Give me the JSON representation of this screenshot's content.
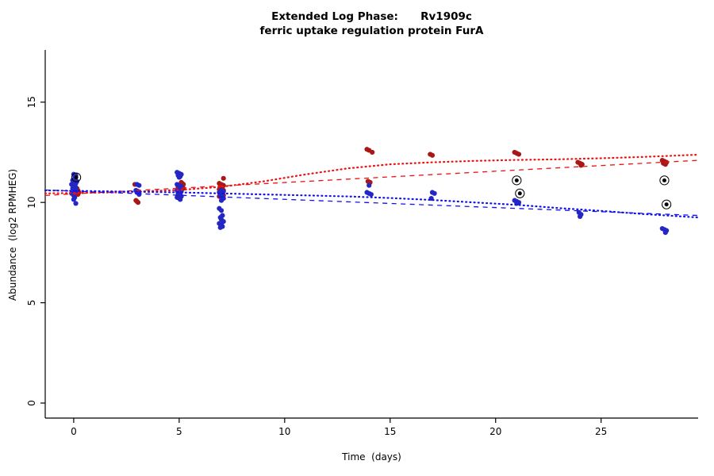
{
  "chart_data": {
    "type": "scatter",
    "title_line1": "Extended Log Phase:      Rv1909c",
    "title_line2": "ferric uptake regulation protein FurA",
    "xlabel": "Time  (days)",
    "ylabel": "Abundance  (log2 RPMHEG)",
    "xlim": [
      -1.35,
      29.6
    ],
    "ylim": [
      -0.75,
      17.6
    ],
    "xticks": [
      0,
      5,
      10,
      15,
      20,
      25
    ],
    "yticks": [
      0,
      5,
      10,
      15
    ],
    "grid": false,
    "legend": "none",
    "point_radius": 3.1,
    "colors": {
      "red_points": "#a81817",
      "blue_points": "#2427c4",
      "red_line": "#ee1111",
      "blue_line": "#1111ee",
      "flagged": "#000000",
      "axis": "#000000"
    },
    "series": [
      {
        "name": "red-points",
        "kind": "points",
        "color": "#a81817",
        "points": [
          [
            0.15,
            10.7
          ],
          [
            0.2,
            10.6
          ],
          [
            0.1,
            10.55
          ],
          [
            0.25,
            10.5
          ],
          [
            0.15,
            10.45
          ],
          [
            0.2,
            10.4
          ],
          [
            2.9,
            10.9
          ],
          [
            3.0,
            10.5
          ],
          [
            3.1,
            10.45
          ],
          [
            2.95,
            10.1
          ],
          [
            3.05,
            10.0
          ],
          [
            3.0,
            10.05
          ],
          [
            5.1,
            11.0
          ],
          [
            5.15,
            10.95
          ],
          [
            5.2,
            10.9
          ],
          [
            5.1,
            10.85
          ],
          [
            5.15,
            10.8
          ],
          [
            5.05,
            10.75
          ],
          [
            5.2,
            10.7
          ],
          [
            7.1,
            11.2
          ],
          [
            6.9,
            10.95
          ],
          [
            7.0,
            10.9
          ],
          [
            7.1,
            10.85
          ],
          [
            6.95,
            10.8
          ],
          [
            7.05,
            10.75
          ],
          [
            7.0,
            10.7
          ],
          [
            6.9,
            10.65
          ],
          [
            7.1,
            10.6
          ],
          [
            7.0,
            10.55
          ],
          [
            6.95,
            10.5
          ],
          [
            7.05,
            10.45
          ],
          [
            7.0,
            10.4
          ],
          [
            7.1,
            10.35
          ],
          [
            6.9,
            10.3
          ],
          [
            7.0,
            10.25
          ],
          [
            13.9,
            12.65
          ],
          [
            14.0,
            12.6
          ],
          [
            14.15,
            12.5
          ],
          [
            13.95,
            11.05
          ],
          [
            14.05,
            11.0
          ],
          [
            16.9,
            12.4
          ],
          [
            17.0,
            12.35
          ],
          [
            20.9,
            12.5
          ],
          [
            21.0,
            12.45
          ],
          [
            21.1,
            12.4
          ],
          [
            23.9,
            12.0
          ],
          [
            24.0,
            11.95
          ],
          [
            24.1,
            11.9
          ],
          [
            24.05,
            11.85
          ],
          [
            27.9,
            12.1
          ],
          [
            28.0,
            12.05
          ],
          [
            28.1,
            12.0
          ],
          [
            27.95,
            11.95
          ],
          [
            28.05,
            11.9
          ]
        ]
      },
      {
        "name": "blue-points",
        "kind": "points",
        "color": "#2427c4",
        "points": [
          [
            0.0,
            11.4
          ],
          [
            0.1,
            11.35
          ],
          [
            0.05,
            11.2
          ],
          [
            -0.05,
            11.1
          ],
          [
            0.15,
            11.05
          ],
          [
            0.0,
            11.0
          ],
          [
            0.1,
            10.95
          ],
          [
            -0.1,
            10.9
          ],
          [
            0.05,
            10.85
          ],
          [
            0.0,
            10.8
          ],
          [
            0.1,
            10.75
          ],
          [
            -0.05,
            10.7
          ],
          [
            0.0,
            10.65
          ],
          [
            0.1,
            10.6
          ],
          [
            0.05,
            10.5
          ],
          [
            -0.1,
            10.45
          ],
          [
            0.0,
            10.35
          ],
          [
            0.05,
            10.25
          ],
          [
            0.0,
            10.15
          ],
          [
            0.1,
            9.95
          ],
          [
            3.0,
            10.9
          ],
          [
            3.1,
            10.85
          ],
          [
            2.95,
            10.6
          ],
          [
            3.05,
            10.55
          ],
          [
            3.0,
            10.5
          ],
          [
            3.1,
            10.4
          ],
          [
            4.9,
            11.5
          ],
          [
            5.0,
            11.45
          ],
          [
            5.1,
            11.4
          ],
          [
            4.95,
            11.35
          ],
          [
            5.05,
            11.3
          ],
          [
            5.0,
            11.25
          ],
          [
            4.9,
            10.9
          ],
          [
            5.0,
            10.85
          ],
          [
            5.1,
            10.8
          ],
          [
            4.95,
            10.75
          ],
          [
            5.05,
            10.7
          ],
          [
            5.0,
            10.65
          ],
          [
            4.9,
            10.6
          ],
          [
            5.1,
            10.55
          ],
          [
            5.0,
            10.5
          ],
          [
            4.95,
            10.45
          ],
          [
            5.05,
            10.4
          ],
          [
            5.0,
            10.35
          ],
          [
            5.1,
            10.3
          ],
          [
            4.9,
            10.25
          ],
          [
            5.0,
            10.2
          ],
          [
            5.05,
            10.15
          ],
          [
            7.0,
            10.6
          ],
          [
            7.1,
            10.55
          ],
          [
            6.9,
            10.5
          ],
          [
            7.0,
            10.45
          ],
          [
            7.05,
            10.4
          ],
          [
            6.95,
            10.35
          ],
          [
            7.0,
            10.3
          ],
          [
            7.1,
            10.2
          ],
          [
            7.0,
            10.1
          ],
          [
            6.9,
            9.7
          ],
          [
            7.0,
            9.6
          ],
          [
            7.05,
            9.35
          ],
          [
            6.95,
            9.25
          ],
          [
            7.0,
            9.15
          ],
          [
            7.1,
            9.05
          ],
          [
            6.9,
            8.95
          ],
          [
            7.0,
            8.9
          ],
          [
            7.05,
            8.8
          ],
          [
            6.95,
            8.75
          ],
          [
            14.0,
            10.85
          ],
          [
            13.9,
            10.5
          ],
          [
            14.0,
            10.45
          ],
          [
            14.1,
            10.4
          ],
          [
            17.0,
            10.5
          ],
          [
            17.1,
            10.45
          ],
          [
            16.95,
            10.2
          ],
          [
            20.9,
            10.1
          ],
          [
            21.0,
            10.05
          ],
          [
            21.1,
            10.0
          ],
          [
            21.0,
            9.95
          ],
          [
            23.95,
            9.5
          ],
          [
            24.05,
            9.4
          ],
          [
            24.0,
            9.3
          ],
          [
            27.9,
            8.7
          ],
          [
            28.0,
            8.65
          ],
          [
            28.1,
            8.6
          ],
          [
            28.05,
            8.5
          ]
        ]
      },
      {
        "name": "flagged-points",
        "kind": "flagged",
        "color": "#000000",
        "points": [
          [
            0.12,
            11.25
          ],
          [
            21.0,
            11.1
          ],
          [
            21.15,
            10.45
          ],
          [
            28.0,
            11.1
          ],
          [
            28.1,
            9.9
          ]
        ]
      },
      {
        "name": "red-trend-dotted",
        "kind": "line",
        "color": "#ee1111",
        "dash": "1 4.2",
        "width": 2.2,
        "linecap": "round",
        "points": [
          [
            -1.35,
            10.45
          ],
          [
            2,
            10.5
          ],
          [
            5,
            10.62
          ],
          [
            7,
            10.78
          ],
          [
            9,
            11.05
          ],
          [
            11,
            11.4
          ],
          [
            13,
            11.7
          ],
          [
            15,
            11.9
          ],
          [
            17,
            12.0
          ],
          [
            19,
            12.07
          ],
          [
            21,
            12.12
          ],
          [
            23,
            12.15
          ],
          [
            25,
            12.2
          ],
          [
            27,
            12.27
          ],
          [
            29.6,
            12.38
          ]
        ]
      },
      {
        "name": "red-trend-dashed",
        "kind": "line",
        "color": "#ee1111",
        "dash": "6 5.5",
        "width": 1.3,
        "linecap": "butt",
        "points": [
          [
            -1.35,
            10.35
          ],
          [
            29.6,
            12.1
          ]
        ]
      },
      {
        "name": "blue-trend-dotted",
        "kind": "line",
        "color": "#1111ee",
        "dash": "1 4.2",
        "width": 2.2,
        "linecap": "round",
        "points": [
          [
            -1.35,
            10.6
          ],
          [
            2,
            10.55
          ],
          [
            5,
            10.5
          ],
          [
            7,
            10.45
          ],
          [
            9,
            10.4
          ],
          [
            11,
            10.35
          ],
          [
            13,
            10.3
          ],
          [
            15,
            10.22
          ],
          [
            17,
            10.12
          ],
          [
            19,
            10.0
          ],
          [
            21,
            9.88
          ],
          [
            23,
            9.72
          ],
          [
            25,
            9.58
          ],
          [
            27,
            9.42
          ],
          [
            29.6,
            9.25
          ]
        ]
      },
      {
        "name": "blue-trend-dashed",
        "kind": "line",
        "color": "#1111ee",
        "dash": "6 5.5",
        "width": 1.3,
        "linecap": "butt",
        "points": [
          [
            -1.35,
            10.62
          ],
          [
            29.6,
            9.35
          ]
        ]
      }
    ]
  }
}
